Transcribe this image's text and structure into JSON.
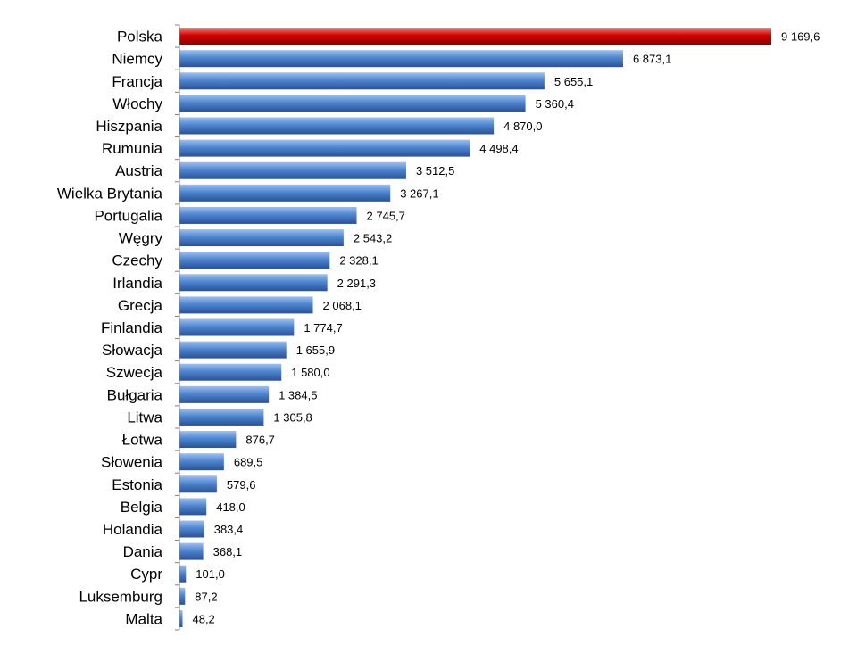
{
  "chart_data": {
    "type": "bar",
    "orientation": "horizontal",
    "title": "",
    "xlabel": "",
    "ylabel": "",
    "grid": false,
    "legend": "none",
    "xlim": [
      0,
      9300
    ],
    "highlight_color": "#cc0000",
    "bar_color": "#4a7ec8",
    "categories": [
      "Polska",
      "Niemcy",
      "Francja",
      "Włochy",
      "Hiszpania",
      "Rumunia",
      "Austria",
      "Wielka Brytania",
      "Portugalia",
      "Węgry",
      "Czechy",
      "Irlandia",
      "Grecja",
      "Finlandia",
      "Słowacja",
      "Szwecja",
      "Bułgaria",
      "Litwa",
      "Łotwa",
      "Słowenia",
      "Estonia",
      "Belgia",
      "Holandia",
      "Dania",
      "Cypr",
      "Luksemburg",
      "Malta"
    ],
    "values": [
      9169.6,
      6873.1,
      5655.1,
      5360.4,
      4870.0,
      4498.4,
      3512.5,
      3267.1,
      2745.7,
      2543.2,
      2328.1,
      2291.3,
      2068.1,
      1774.7,
      1655.9,
      1580.0,
      1384.5,
      1305.8,
      876.7,
      689.5,
      579.6,
      418.0,
      383.4,
      368.1,
      101.0,
      87.2,
      48.2
    ],
    "value_labels": [
      "9 169,6",
      "6 873,1",
      "5 655,1",
      "5 360,4",
      "4 870,0",
      "4 498,4",
      "3 512,5",
      "3 267,1",
      "2 745,7",
      "2 543,2",
      "2 328,1",
      "2 291,3",
      "2 068,1",
      "1 774,7",
      "1 655,9",
      "1 580,0",
      "1 384,5",
      "1 305,8",
      "876,7",
      "689,5",
      "579,6",
      "418,0",
      "383,4",
      "368,1",
      "101,0",
      "87,2",
      "48,2"
    ]
  }
}
